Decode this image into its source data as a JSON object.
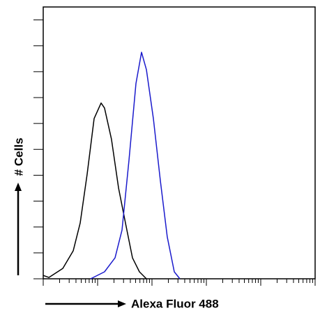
{
  "chart_data": {
    "type": "line",
    "x_label": "Alexa Fluor 488",
    "y_label": "# Cells",
    "xscale": "log",
    "xlim": [
      1,
      100000
    ],
    "ylim": [
      0,
      10.5
    ],
    "xticks": [
      1,
      2,
      3,
      4,
      5,
      6,
      7,
      8,
      9,
      10,
      20,
      30,
      40,
      50,
      60,
      70,
      80,
      90,
      100,
      200,
      300,
      400,
      500,
      600,
      700,
      800,
      900,
      1000,
      2000,
      3000,
      4000,
      5000,
      6000,
      7000,
      8000,
      9000,
      10000,
      20000,
      30000,
      40000,
      50000,
      60000,
      70000,
      80000,
      90000,
      100000
    ],
    "yticks": [
      0,
      1,
      2,
      3,
      4,
      5,
      6,
      7,
      8,
      9,
      10
    ],
    "series": [
      {
        "color": "#000000",
        "x": [
          1,
          1.27,
          2.29,
          3.56,
          4.78,
          6.42,
          8.63,
          11.6,
          13.4,
          18.0,
          24.3,
          32.6,
          43.8,
          58.8,
          78.9
        ],
        "values": [
          0.13,
          0.05,
          0.4,
          1.08,
          2.15,
          4.04,
          6.19,
          6.79,
          6.6,
          5.39,
          3.5,
          2.15,
          0.81,
          0.27,
          0
        ]
      },
      {
        "color": "#1a1acc",
        "x": [
          7.45,
          13.4,
          20.9,
          28.1,
          37.8,
          50.7,
          64.2,
          78.9,
          106,
          143,
          191,
          257,
          326
        ],
        "values": [
          0,
          0.27,
          0.81,
          1.88,
          4.58,
          7.54,
          8.75,
          8.08,
          6.19,
          3.77,
          1.62,
          0.27,
          0
        ]
      }
    ]
  }
}
